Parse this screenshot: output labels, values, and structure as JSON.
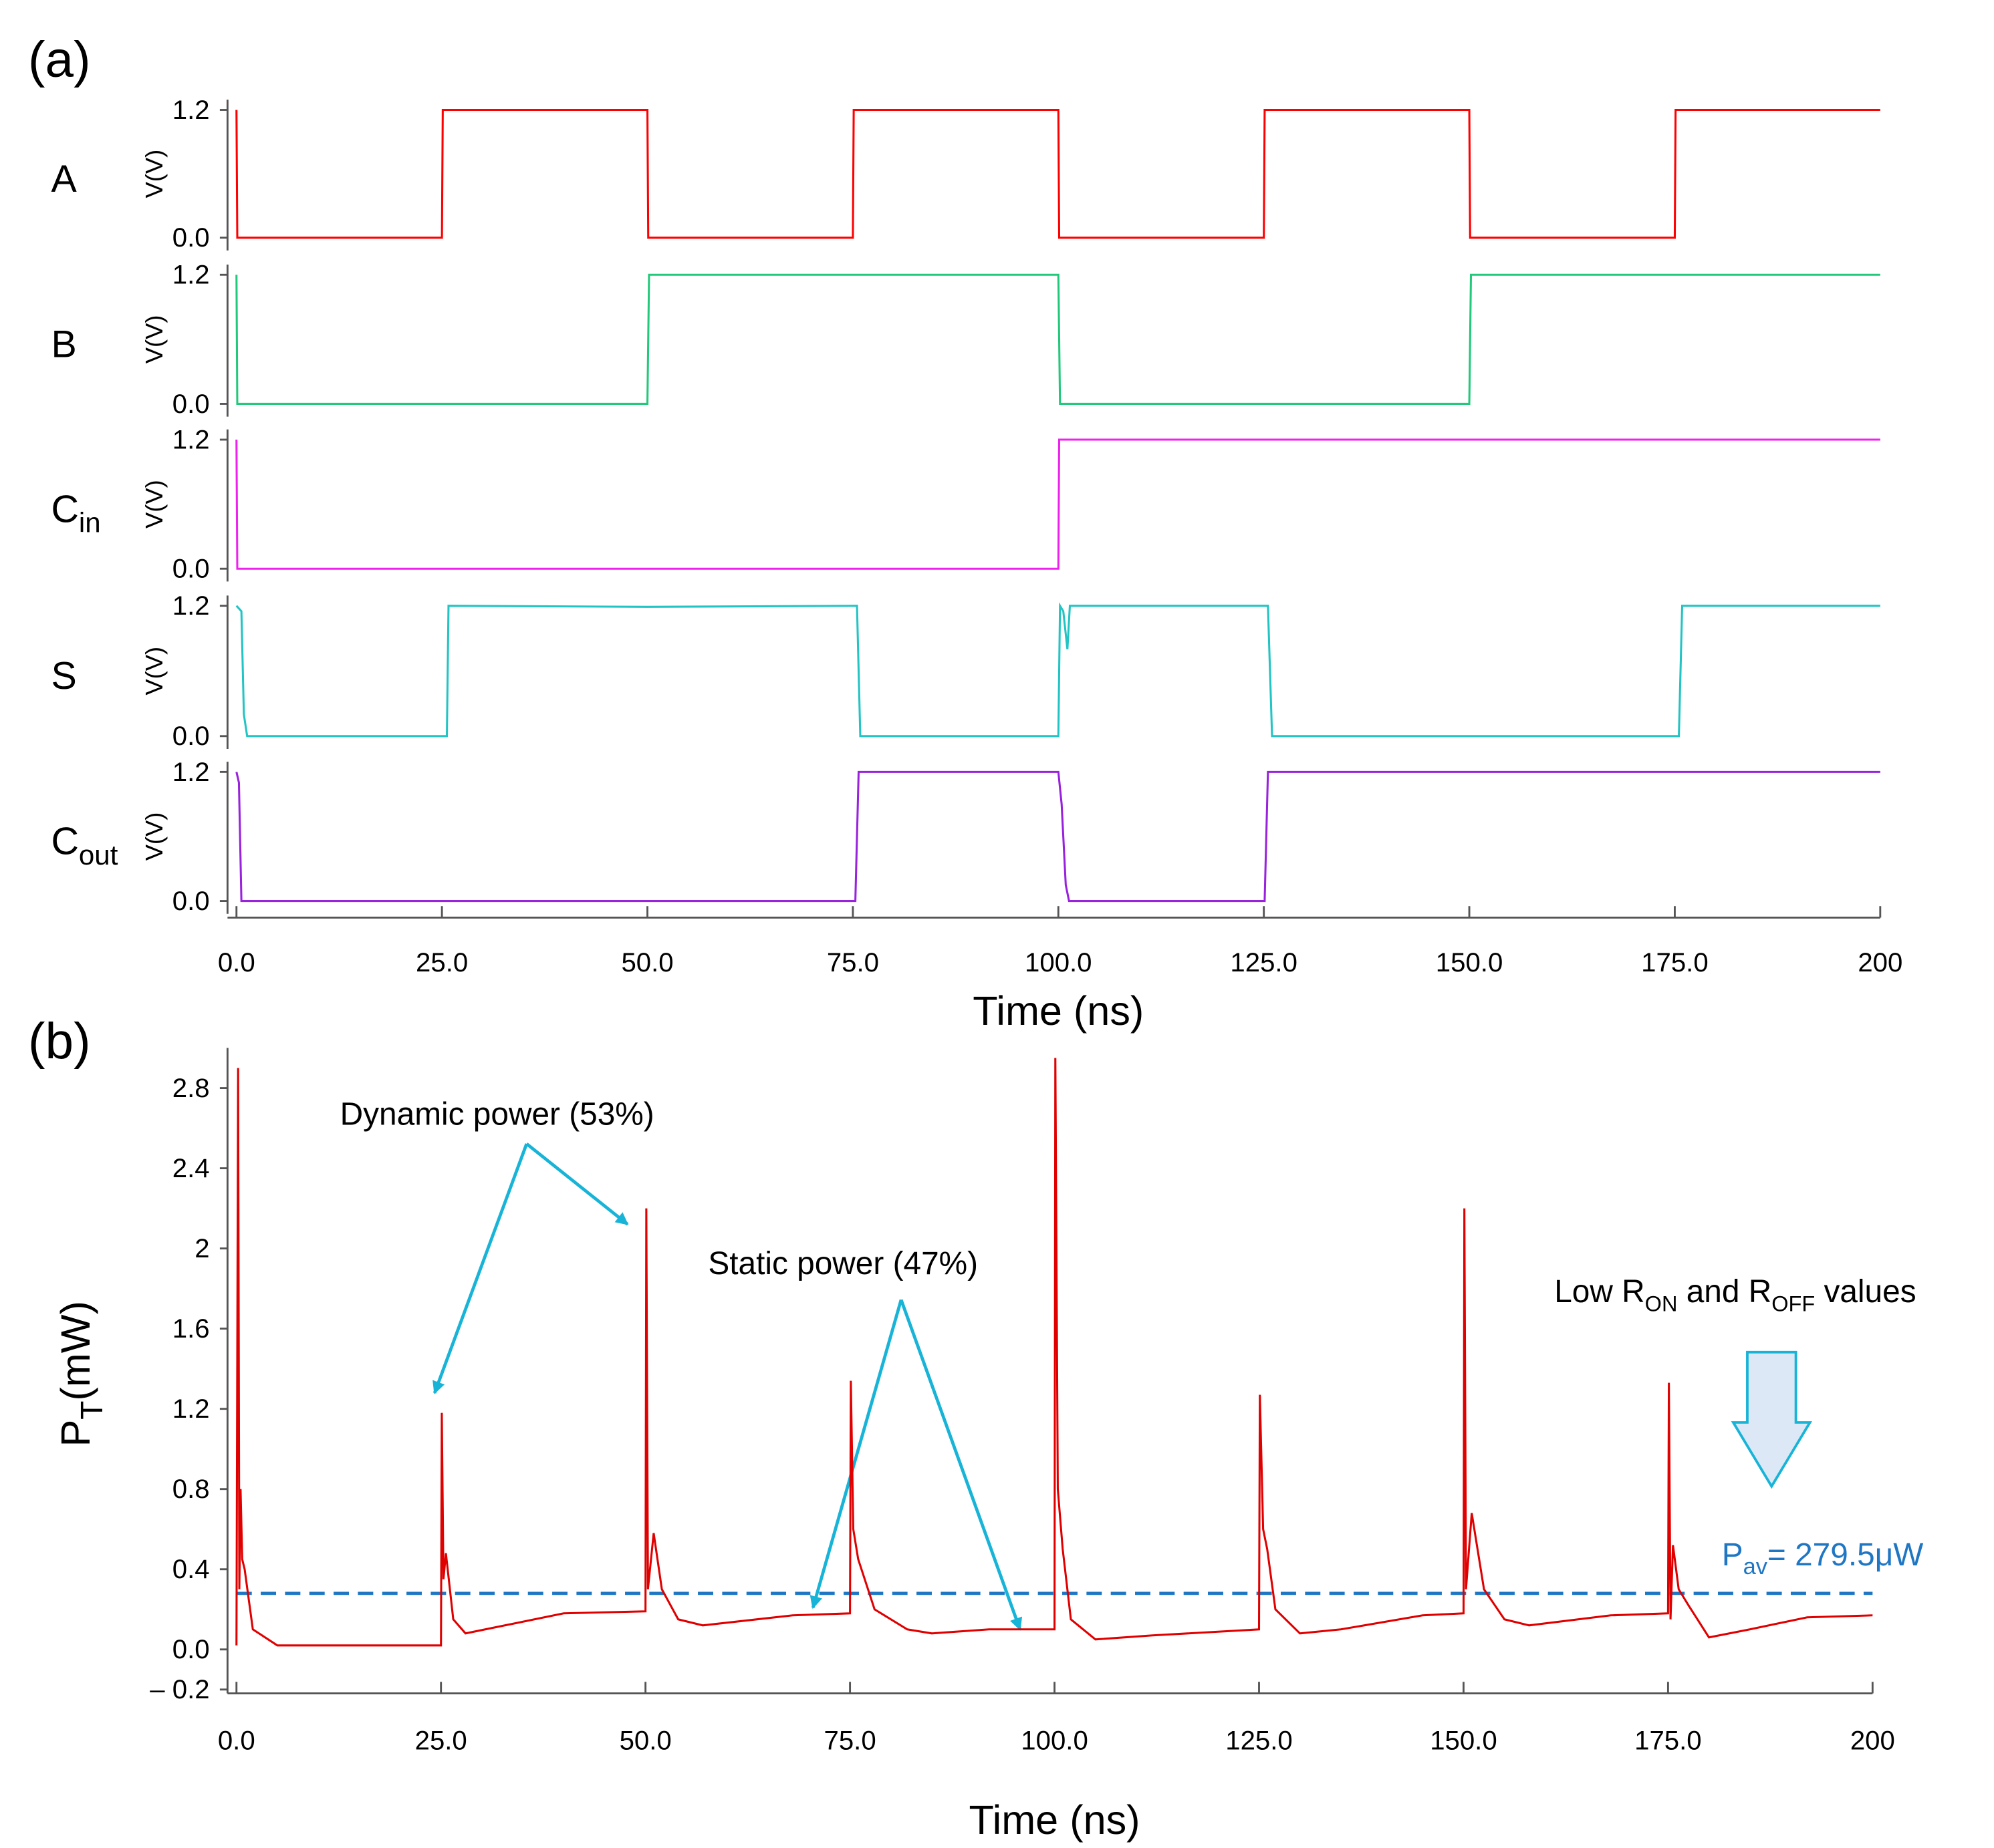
{
  "chart_data": [
    {
      "type": "line",
      "label": "A",
      "ylabel": "V(V)",
      "color": "#ff0000",
      "x": [
        0,
        0.1,
        25,
        25.1,
        50,
        50.1,
        75,
        75.1,
        100,
        100.1,
        125,
        125.1,
        150,
        150.1,
        175,
        175.1,
        200
      ],
      "values": [
        1.2,
        0,
        0,
        1.2,
        1.2,
        0,
        0,
        1.2,
        1.2,
        0,
        0,
        1.2,
        1.2,
        0,
        0,
        1.2,
        1.2
      ],
      "xlim": [
        0,
        200
      ],
      "ylim": [
        0,
        1.2
      ],
      "yticks": [
        {
          "value": 0,
          "label": "0.0"
        },
        1.2
      ]
    },
    {
      "type": "line",
      "label": "B",
      "ylabel": "V(V)",
      "color": "#22c97a",
      "x": [
        0,
        0.1,
        50,
        50.2,
        100,
        100.2,
        150,
        150.2,
        200
      ],
      "values": [
        1.2,
        0,
        0,
        1.2,
        1.2,
        0,
        0,
        1.2,
        1.2
      ],
      "xlim": [
        0,
        200
      ],
      "ylim": [
        0,
        1.2
      ],
      "yticks": [
        {
          "value": 0,
          "label": "0.0"
        },
        1.2
      ]
    },
    {
      "type": "line",
      "label": "C",
      "label_sub": "in",
      "ylabel": "V(V)",
      "color": "#ee22ee",
      "x": [
        0,
        0.1,
        100,
        100.1,
        200
      ],
      "values": [
        1.2,
        0,
        0,
        1.2,
        1.2
      ],
      "xlim": [
        0,
        200
      ],
      "ylim": [
        0,
        1.2
      ],
      "yticks": [
        {
          "value": 0,
          "label": "0.0"
        },
        1.2
      ]
    },
    {
      "type": "line",
      "label": "S",
      "ylabel": "V(V)",
      "color": "#22c4c4",
      "x": [
        0,
        0.6,
        0.9,
        1.3,
        25.6,
        25.8,
        50,
        75.5,
        75.9,
        100,
        100.2,
        100.6,
        101.1,
        101.4,
        125.5,
        126.0,
        150,
        175.5,
        175.9,
        200
      ],
      "values": [
        1.2,
        1.15,
        0.2,
        0,
        0,
        1.2,
        1.19,
        1.2,
        0,
        0,
        1.2,
        1.15,
        0.8,
        1.2,
        1.2,
        0,
        0,
        0,
        1.2,
        1.2
      ],
      "xlim": [
        0,
        200
      ],
      "ylim": [
        0,
        1.2
      ],
      "yticks": [
        {
          "value": 0,
          "label": "0.0"
        },
        1.2
      ]
    },
    {
      "type": "line",
      "label": "C",
      "label_sub": "out",
      "ylabel": "V(V)",
      "color": "#9922dd",
      "x": [
        0,
        0.3,
        0.6,
        75.3,
        75.7,
        100,
        100.4,
        100.9,
        101.3,
        125.1,
        125.5,
        200
      ],
      "values": [
        1.2,
        1.1,
        0,
        0,
        1.2,
        1.2,
        0.9,
        0.15,
        0,
        0,
        1.2,
        1.2
      ],
      "xlim": [
        0,
        200
      ],
      "ylim": [
        0,
        1.2
      ],
      "yticks": [
        {
          "value": 0,
          "label": "0.0"
        },
        1.2
      ],
      "xlabel": "Time (ns)",
      "xticks": [
        {
          "value": 0,
          "label": "0.0"
        },
        {
          "value": 25,
          "label": "25.0"
        },
        {
          "value": 50,
          "label": "50.0"
        },
        {
          "value": 75,
          "label": "75.0"
        },
        {
          "value": 100,
          "label": "100.0"
        },
        {
          "value": 125,
          "label": "125.0"
        },
        {
          "value": 150,
          "label": "150.0"
        },
        {
          "value": 175,
          "label": "175.0"
        },
        200
      ]
    },
    {
      "type": "line",
      "ylabel": "P",
      "ylabel_sub": "T",
      "ylabel_rest": "(mW)",
      "xlabel": "Time (ns)",
      "color": "#e00000",
      "x": [
        0,
        0.2,
        0.35,
        0.5,
        0.7,
        1.0,
        2.0,
        5.0,
        25,
        25.1,
        25.3,
        25.6,
        26.5,
        28,
        40,
        50,
        50.1,
        50.3,
        51,
        52,
        54,
        57,
        68,
        75,
        75.1,
        75.4,
        76,
        78,
        82,
        85,
        92,
        100,
        100.1,
        100.4,
        101,
        102,
        105,
        112,
        125,
        125.1,
        125.5,
        126,
        127,
        130,
        135,
        145,
        150,
        150.1,
        150.3,
        151,
        152.5,
        155,
        158,
        168,
        175,
        175.1,
        175.3,
        175.6,
        176.3,
        177.5,
        180,
        185,
        192,
        200
      ],
      "values": [
        0.02,
        2.9,
        0.3,
        0.8,
        0.45,
        0.4,
        0.1,
        0.02,
        0.02,
        1.18,
        0.35,
        0.48,
        0.15,
        0.08,
        0.18,
        0.19,
        2.2,
        0.3,
        0.58,
        0.3,
        0.15,
        0.12,
        0.17,
        0.18,
        1.34,
        0.6,
        0.45,
        0.2,
        0.1,
        0.08,
        0.1,
        0.1,
        2.95,
        0.8,
        0.5,
        0.15,
        0.05,
        0.07,
        0.1,
        1.27,
        0.6,
        0.5,
        0.2,
        0.08,
        0.1,
        0.17,
        0.18,
        2.2,
        0.3,
        0.68,
        0.3,
        0.15,
        0.12,
        0.17,
        0.18,
        1.33,
        0.15,
        0.52,
        0.3,
        0.22,
        0.06,
        0.1,
        0.16,
        0.17
      ],
      "average": 0.2795,
      "average_color": "#1f77c4",
      "average_label": "P",
      "average_label_sub": "av",
      "average_label_rest": "= 279.5μW",
      "xlim": [
        0,
        200
      ],
      "ylim": [
        -0.2,
        3.0
      ],
      "yticks": [
        {
          "value": -0.2,
          "label": "– 0.2"
        },
        {
          "value": 0,
          "label": "0.0"
        },
        0.4,
        0.8,
        1.2,
        1.6,
        2.0,
        2.4,
        2.8
      ],
      "xticks": [
        {
          "value": 0,
          "label": "0.0"
        },
        {
          "value": 25,
          "label": "25.0"
        },
        {
          "value": 50,
          "label": "50.0"
        },
        {
          "value": 75,
          "label": "75.0"
        },
        {
          "value": 100,
          "label": "100.0"
        },
        {
          "value": 125,
          "label": "125.0"
        },
        {
          "value": 150,
          "label": "150.0"
        },
        {
          "value": 175,
          "label": "175.0"
        },
        200
      ]
    }
  ],
  "panels": [
    "(a)",
    "(b)"
  ],
  "annotations": {
    "dynamic": "Dynamic power (53%)",
    "static": "Static power (47%)",
    "low": [
      "Low R",
      "ON",
      " and R",
      "OFF",
      " values"
    ]
  }
}
